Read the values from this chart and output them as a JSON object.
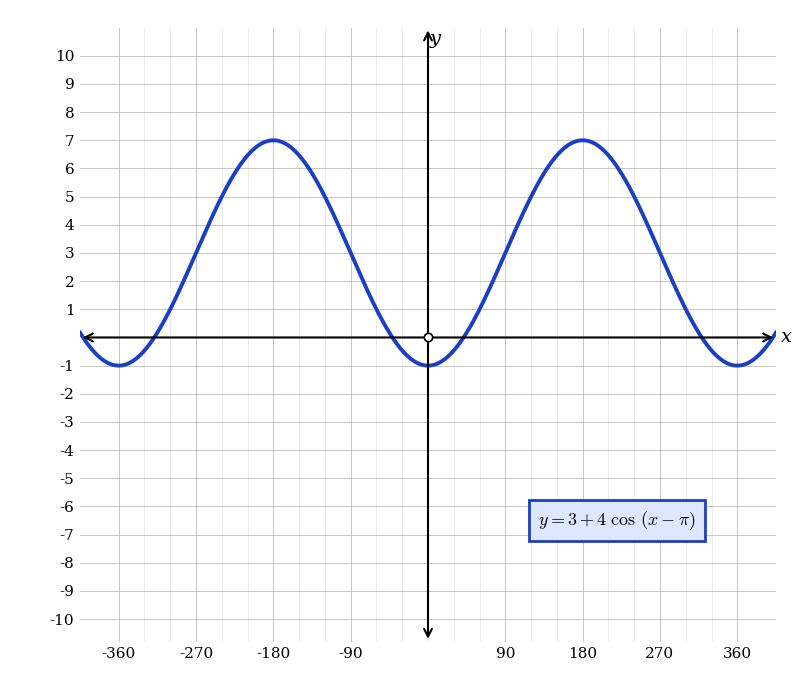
{
  "xlabel": "x",
  "ylabel": "y",
  "xlim": [
    -405,
    405
  ],
  "ylim": [
    -10.8,
    11.0
  ],
  "x_ticks": [
    -360,
    -270,
    -180,
    -90,
    90,
    180,
    270,
    360
  ],
  "y_ticks": [
    -10,
    -9,
    -8,
    -7,
    -6,
    -5,
    -4,
    -3,
    -2,
    -1,
    1,
    2,
    3,
    4,
    5,
    6,
    7,
    8,
    9,
    10
  ],
  "line_color": "#1a3fc4",
  "line_width": 2.8,
  "background_color": "#ffffff",
  "grid_color": "#bbbbbb",
  "grid_minor_color": "#dddddd",
  "amplitude": 4,
  "vertical_shift": 3,
  "phase_shift_deg": 180,
  "formula_x": 220,
  "formula_y": -6.5,
  "box_facecolor": "#dde8ff",
  "box_edgecolor": "#1a3fc4"
}
